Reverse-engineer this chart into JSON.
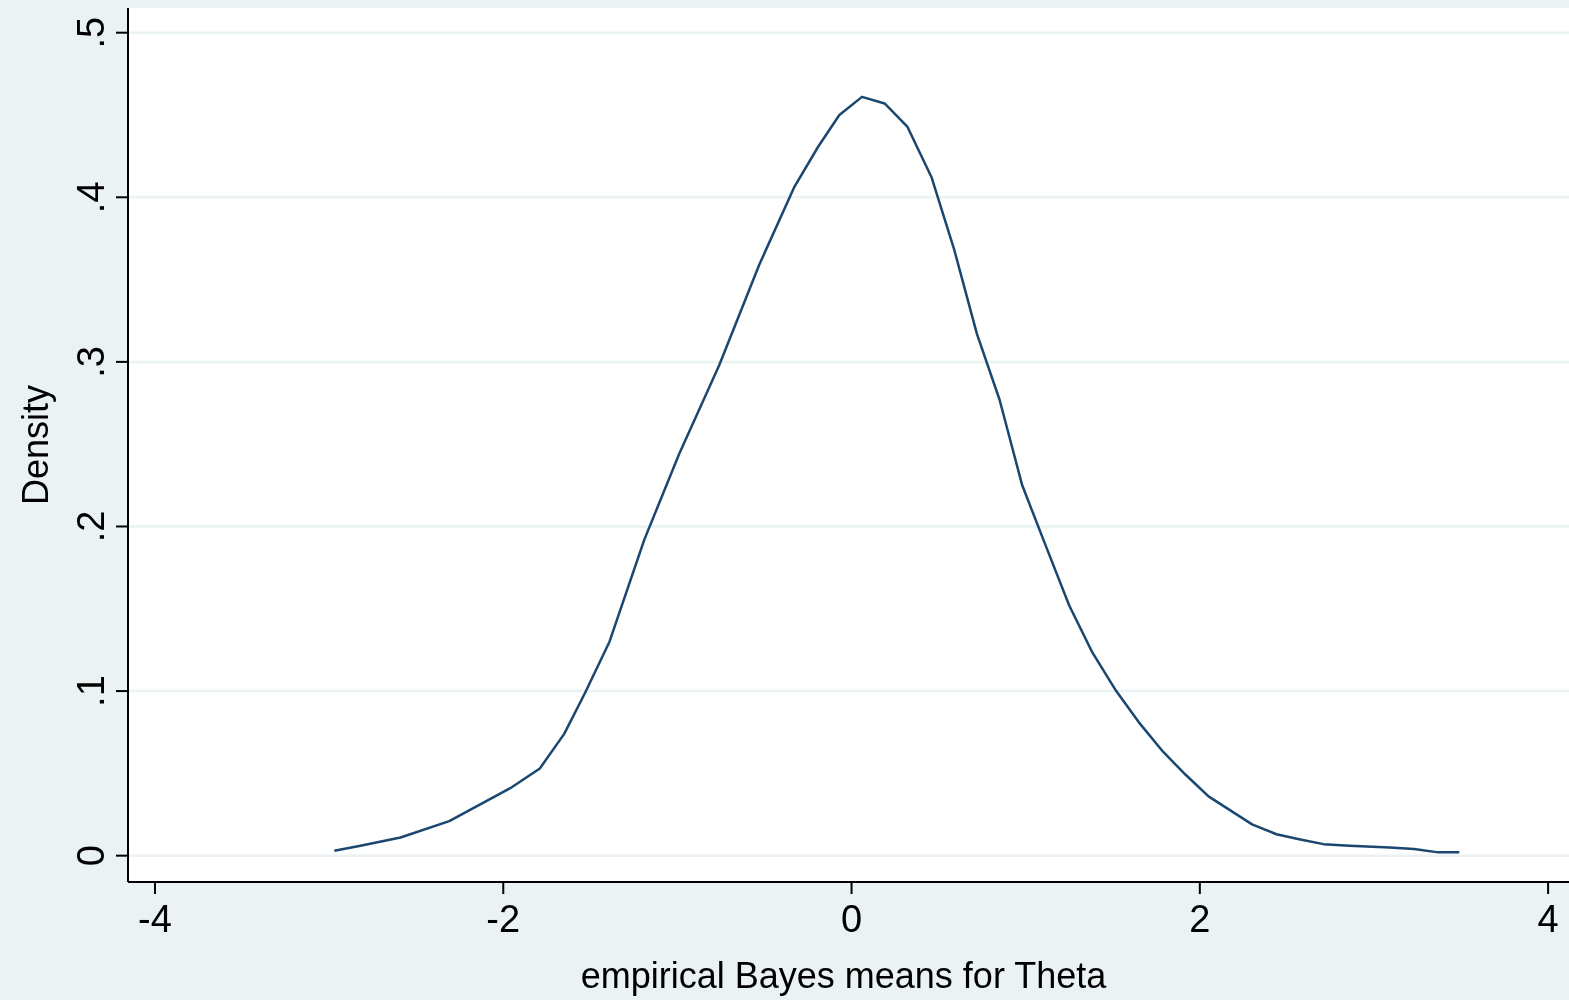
{
  "chart_data": {
    "type": "line",
    "xlabel": "empirical Bayes means for Theta",
    "ylabel": "Density",
    "x": [
      -2.97,
      -2.82,
      -2.59,
      -2.31,
      -1.96,
      -1.79,
      -1.65,
      -1.53,
      -1.39,
      -1.19,
      -0.99,
      -0.76,
      -0.53,
      -0.33,
      -0.19,
      -0.07,
      0.06,
      0.19,
      0.32,
      0.46,
      0.59,
      0.72,
      0.85,
      0.98,
      1.12,
      1.25,
      1.38,
      1.52,
      1.65,
      1.79,
      1.92,
      2.05,
      2.3,
      2.44,
      2.57,
      2.71,
      2.86,
      3.09,
      3.23,
      3.37,
      3.49
    ],
    "series": [
      {
        "color": "#1a476f",
        "values": [
          0.003,
          0.006,
          0.011,
          0.021,
          0.041,
          0.053,
          0.074,
          0.099,
          0.13,
          0.192,
          0.244,
          0.298,
          0.359,
          0.406,
          0.431,
          0.45,
          0.461,
          0.457,
          0.443,
          0.412,
          0.368,
          0.317,
          0.277,
          0.225,
          0.187,
          0.152,
          0.124,
          0.1,
          0.081,
          0.063,
          0.049,
          0.036,
          0.019,
          0.013,
          0.01,
          0.007,
          0.006,
          0.005,
          0.004,
          0.002,
          0.002
        ]
      }
    ],
    "xlim": [
      -4.155,
      4.12
    ],
    "xticks": [
      {
        "value": -4,
        "label": "-4"
      },
      {
        "value": -2,
        "label": "-2"
      },
      0,
      2,
      4
    ],
    "ylim": [
      -0.016,
      0.515
    ],
    "yticks": [
      0,
      {
        "value": 0.1,
        "label": ".1"
      },
      {
        "value": 0.2,
        "label": ".2"
      },
      {
        "value": 0.3,
        "label": ".3"
      },
      {
        "value": 0.4,
        "label": ".4"
      },
      {
        "value": 0.5,
        "label": ".5"
      }
    ],
    "grid": "y",
    "marker": "none",
    "line_style": "solid"
  }
}
